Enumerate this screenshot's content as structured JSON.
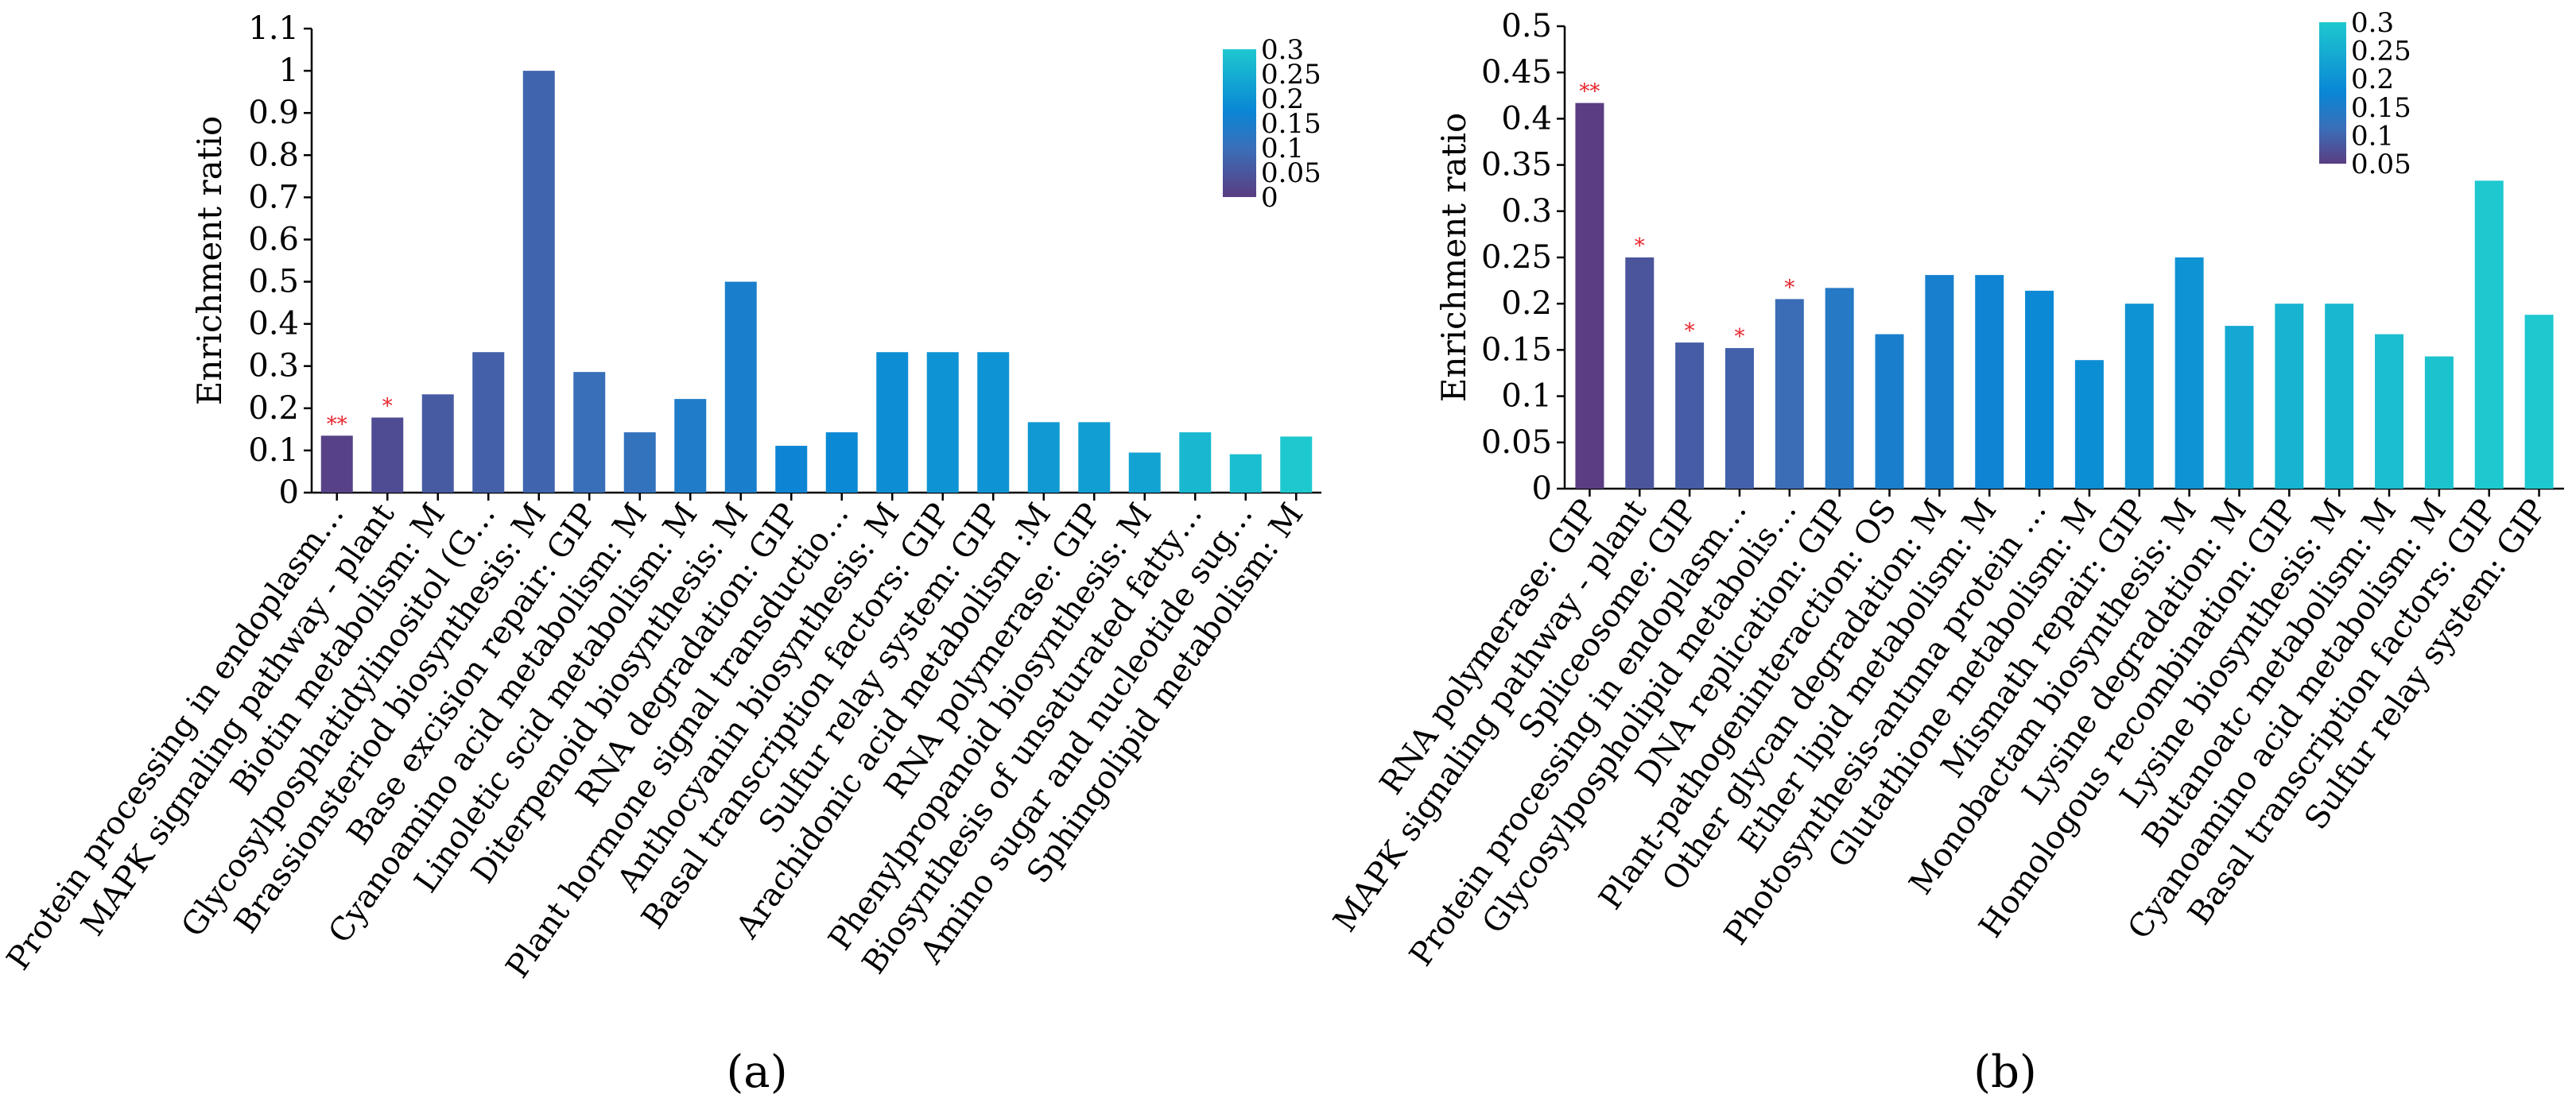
{
  "chart_data": [
    {
      "type": "bar",
      "panel_label": "(a)",
      "ylabel": "Enrichment ratio",
      "ylim": [
        0,
        1.1
      ],
      "yticks": [
        "0",
        "0.1",
        "0.2",
        "0.3",
        "0.4",
        "0.5",
        "0.6",
        "0.7",
        "0.8",
        "0.9",
        "1",
        "1.1"
      ],
      "categories": [
        "Protein processing in endoplasm…",
        "MAPK signaling pathway - plant",
        "Biotin metabolism: M",
        "Glycosylposphatidylinositol (G…",
        "Brassionsteriod biosynthesis: M",
        "Base excision repair: GIP",
        "Cyanoamino acid metabolism: M",
        "Linoletic scid metabolism: M",
        "Diterpenoid biosynthesis: M",
        "RNA degradation: GIP",
        "Plant hormone signal transductio…",
        "Anthocyanin biosynthesis: M",
        "Basal transcription factors: GIP",
        "Sulfur relay system: GIP",
        "Arachidonic acid metabolism :M",
        "RNA polymerase: GIP",
        "Phenylpropanoid biosynthesis: M",
        "Biosynthesis of unsaturated fatty…",
        "Amino sugar and nucleotide sug…",
        "Sphingolipid metabolism: M"
      ],
      "values": [
        0.135,
        0.178,
        0.233,
        0.333,
        1.0,
        0.286,
        0.143,
        0.222,
        0.5,
        0.111,
        0.143,
        0.333,
        0.333,
        0.333,
        0.167,
        0.167,
        0.095,
        0.143,
        0.091,
        0.133
      ],
      "pvalues": [
        0.01,
        0.03,
        0.06,
        0.07,
        0.08,
        0.1,
        0.11,
        0.14,
        0.15,
        0.17,
        0.18,
        0.19,
        0.2,
        0.2,
        0.21,
        0.22,
        0.23,
        0.27,
        0.28,
        0.3
      ],
      "significance": [
        "**",
        "*",
        "",
        "",
        "",
        "",
        "",
        "",
        "",
        "",
        "",
        "",
        "",
        "",
        "",
        "",
        "",
        "",
        "",
        ""
      ],
      "colorbar": {
        "min": 0,
        "max": 0.3,
        "labels": [
          "0",
          "0.05",
          "0.1",
          "0.15",
          "0.2",
          "0.25",
          "0.3"
        ],
        "label_values": [
          0,
          0.05,
          0.1,
          0.15,
          0.2,
          0.25,
          0.3
        ],
        "colors": [
          "#5a3d82",
          "#3a6fb9",
          "#0a86d5",
          "#1ec8cf"
        ],
        "color_stops": [
          0,
          0.33,
          0.58,
          1
        ]
      }
    },
    {
      "type": "bar",
      "panel_label": "(b)",
      "ylabel": "Enrichment ratio",
      "ylim": [
        0,
        0.5
      ],
      "yticks": [
        "0",
        "0.05",
        "0.1",
        "0.15",
        "0.2",
        "0.25",
        "0.3",
        "0.35",
        "0.4",
        "0.45",
        "0.5"
      ],
      "categories": [
        "RNA polymerase: GIP",
        "MAPK signaling pathway - plant",
        "Spliceosome: GIP",
        "Protein processing in endoplasm…",
        "Glycosylpospholipid metabolis…",
        "DNA replication: GIP",
        "Plant-pathogeninteraction: OS",
        "Other glycan degradation: M",
        "Ether lipid metabolism: M",
        "Photosynthesis-antnna protein …",
        "Glutathione metabolism: M",
        "Mismath repair: GIP",
        "Monobactam biosynthesis: M",
        "Lysine degradation: M",
        "Homologous recombination: GIP",
        "Lysine biosynthesis: M",
        "Butanoatc metabolism: M",
        "Cyanoamino acid metabolism: M",
        "Basal transcription factors: GIP",
        "Sulfur relay system: GIP"
      ],
      "values": [
        0.417,
        0.25,
        0.158,
        0.152,
        0.205,
        0.217,
        0.167,
        0.231,
        0.231,
        0.214,
        0.139,
        0.2,
        0.25,
        0.176,
        0.2,
        0.2,
        0.167,
        0.143,
        0.333,
        0.188
      ],
      "pvalues": [
        0.05,
        0.08,
        0.09,
        0.095,
        0.11,
        0.14,
        0.155,
        0.16,
        0.17,
        0.18,
        0.19,
        0.2,
        0.2,
        0.24,
        0.26,
        0.27,
        0.28,
        0.29,
        0.31,
        0.3
      ],
      "significance": [
        "**",
        "*",
        "*",
        "*",
        "*",
        "",
        "",
        "",
        "",
        "",
        "",
        "",
        "",
        "",
        "",
        "",
        "",
        "",
        "",
        ""
      ],
      "colorbar": {
        "min": 0.05,
        "max": 0.3,
        "labels": [
          "0.05",
          "0.1",
          "0.15",
          "0.2",
          "0.25",
          "0.3"
        ],
        "label_values": [
          0.05,
          0.1,
          0.15,
          0.2,
          0.25,
          0.3
        ],
        "colors": [
          "#5a3d82",
          "#3a6fb9",
          "#0a86d5",
          "#1ec8cf"
        ],
        "color_stops": [
          0,
          0.25,
          0.5,
          1
        ]
      }
    }
  ]
}
